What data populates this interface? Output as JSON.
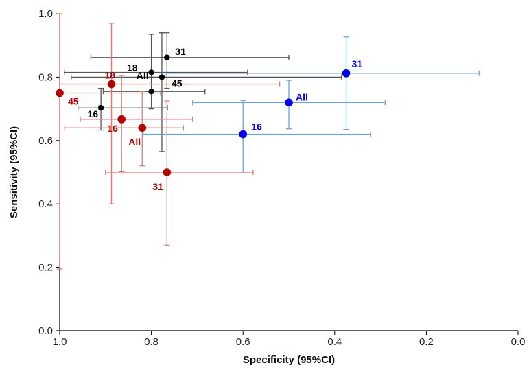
{
  "chart_data": {
    "type": "scatter",
    "xlabel": "Specificity (95%CI)",
    "ylabel": "Sensitivity (95%CI)",
    "xlim": [
      1.0,
      0.0
    ],
    "ylim": [
      0.0,
      1.0
    ],
    "x_reversed": true,
    "xticks": [
      "1.0",
      "0.8",
      "0.6",
      "0.4",
      "0.2",
      "0.0"
    ],
    "yticks": [
      "0.0",
      "0.2",
      "0.4",
      "0.6",
      "0.8",
      "1.0"
    ],
    "grid": false,
    "legend": "none",
    "series": [
      {
        "color": "#000000",
        "bar_color": "#555555",
        "points": [
          {
            "label": "31",
            "x": 0.766,
            "y": 0.862,
            "x_ci": [
              0.932,
              0.5
            ],
            "y_ci": [
              0.765,
              0.94
            ]
          },
          {
            "label": "18",
            "x": 0.8,
            "y": 0.815,
            "x_ci": [
              0.99,
              0.59
            ],
            "y_ci": [
              0.75,
              0.935
            ]
          },
          {
            "label": "45",
            "x": 0.777,
            "y": 0.8,
            "x_ci": [
              0.975,
              0.385
            ],
            "y_ci": [
              0.565,
              0.94
            ]
          },
          {
            "label": "All",
            "x": 0.8,
            "y": 0.755,
            "x_ci": [
              0.905,
              0.683
            ],
            "y_ci": [
              0.7,
              0.8
            ]
          },
          {
            "label": "16",
            "x": 0.91,
            "y": 0.703,
            "x_ci": [
              0.96,
              0.765
            ],
            "y_ci": [
              0.633,
              0.765
            ]
          }
        ]
      },
      {
        "color": "#0000ee",
        "bar_color": "#6fa3d6",
        "points": [
          {
            "label": "31",
            "x": 0.375,
            "y": 0.812,
            "x_ci": [
              0.77,
              0.085
            ],
            "y_ci": [
              0.635,
              0.927
            ]
          },
          {
            "label": "All",
            "x": 0.5,
            "y": 0.72,
            "x_ci": [
              0.71,
              0.29
            ],
            "y_ci": [
              0.637,
              0.79
            ]
          },
          {
            "label": "16",
            "x": 0.6,
            "y": 0.62,
            "x_ci": [
              0.818,
              0.322
            ],
            "y_ci": [
              0.5,
              0.727
            ]
          }
        ]
      },
      {
        "color": "#b30000",
        "bar_color": "#e07878",
        "points": [
          {
            "label": "45",
            "x": 1.0,
            "y": 0.75,
            "x_ci": [
              1.0,
              0.78
            ],
            "y_ci": [
              0.195,
              1.0
            ]
          },
          {
            "label": "18",
            "x": 0.887,
            "y": 0.778,
            "x_ci": [
              1.0,
              0.52
            ],
            "y_ci": [
              0.4,
              0.97
            ]
          },
          {
            "label": "16",
            "x": 0.865,
            "y": 0.667,
            "x_ci": [
              0.955,
              0.71
            ],
            "y_ci": [
              0.503,
              0.805
            ]
          },
          {
            "label": "All",
            "x": 0.82,
            "y": 0.64,
            "x_ci": [
              0.99,
              0.73
            ],
            "y_ci": [
              0.52,
              0.755
            ]
          },
          {
            "label": "31",
            "x": 0.766,
            "y": 0.5,
            "x_ci": [
              0.9,
              0.578
            ],
            "y_ci": [
              0.27,
              0.725
            ]
          }
        ]
      }
    ]
  }
}
